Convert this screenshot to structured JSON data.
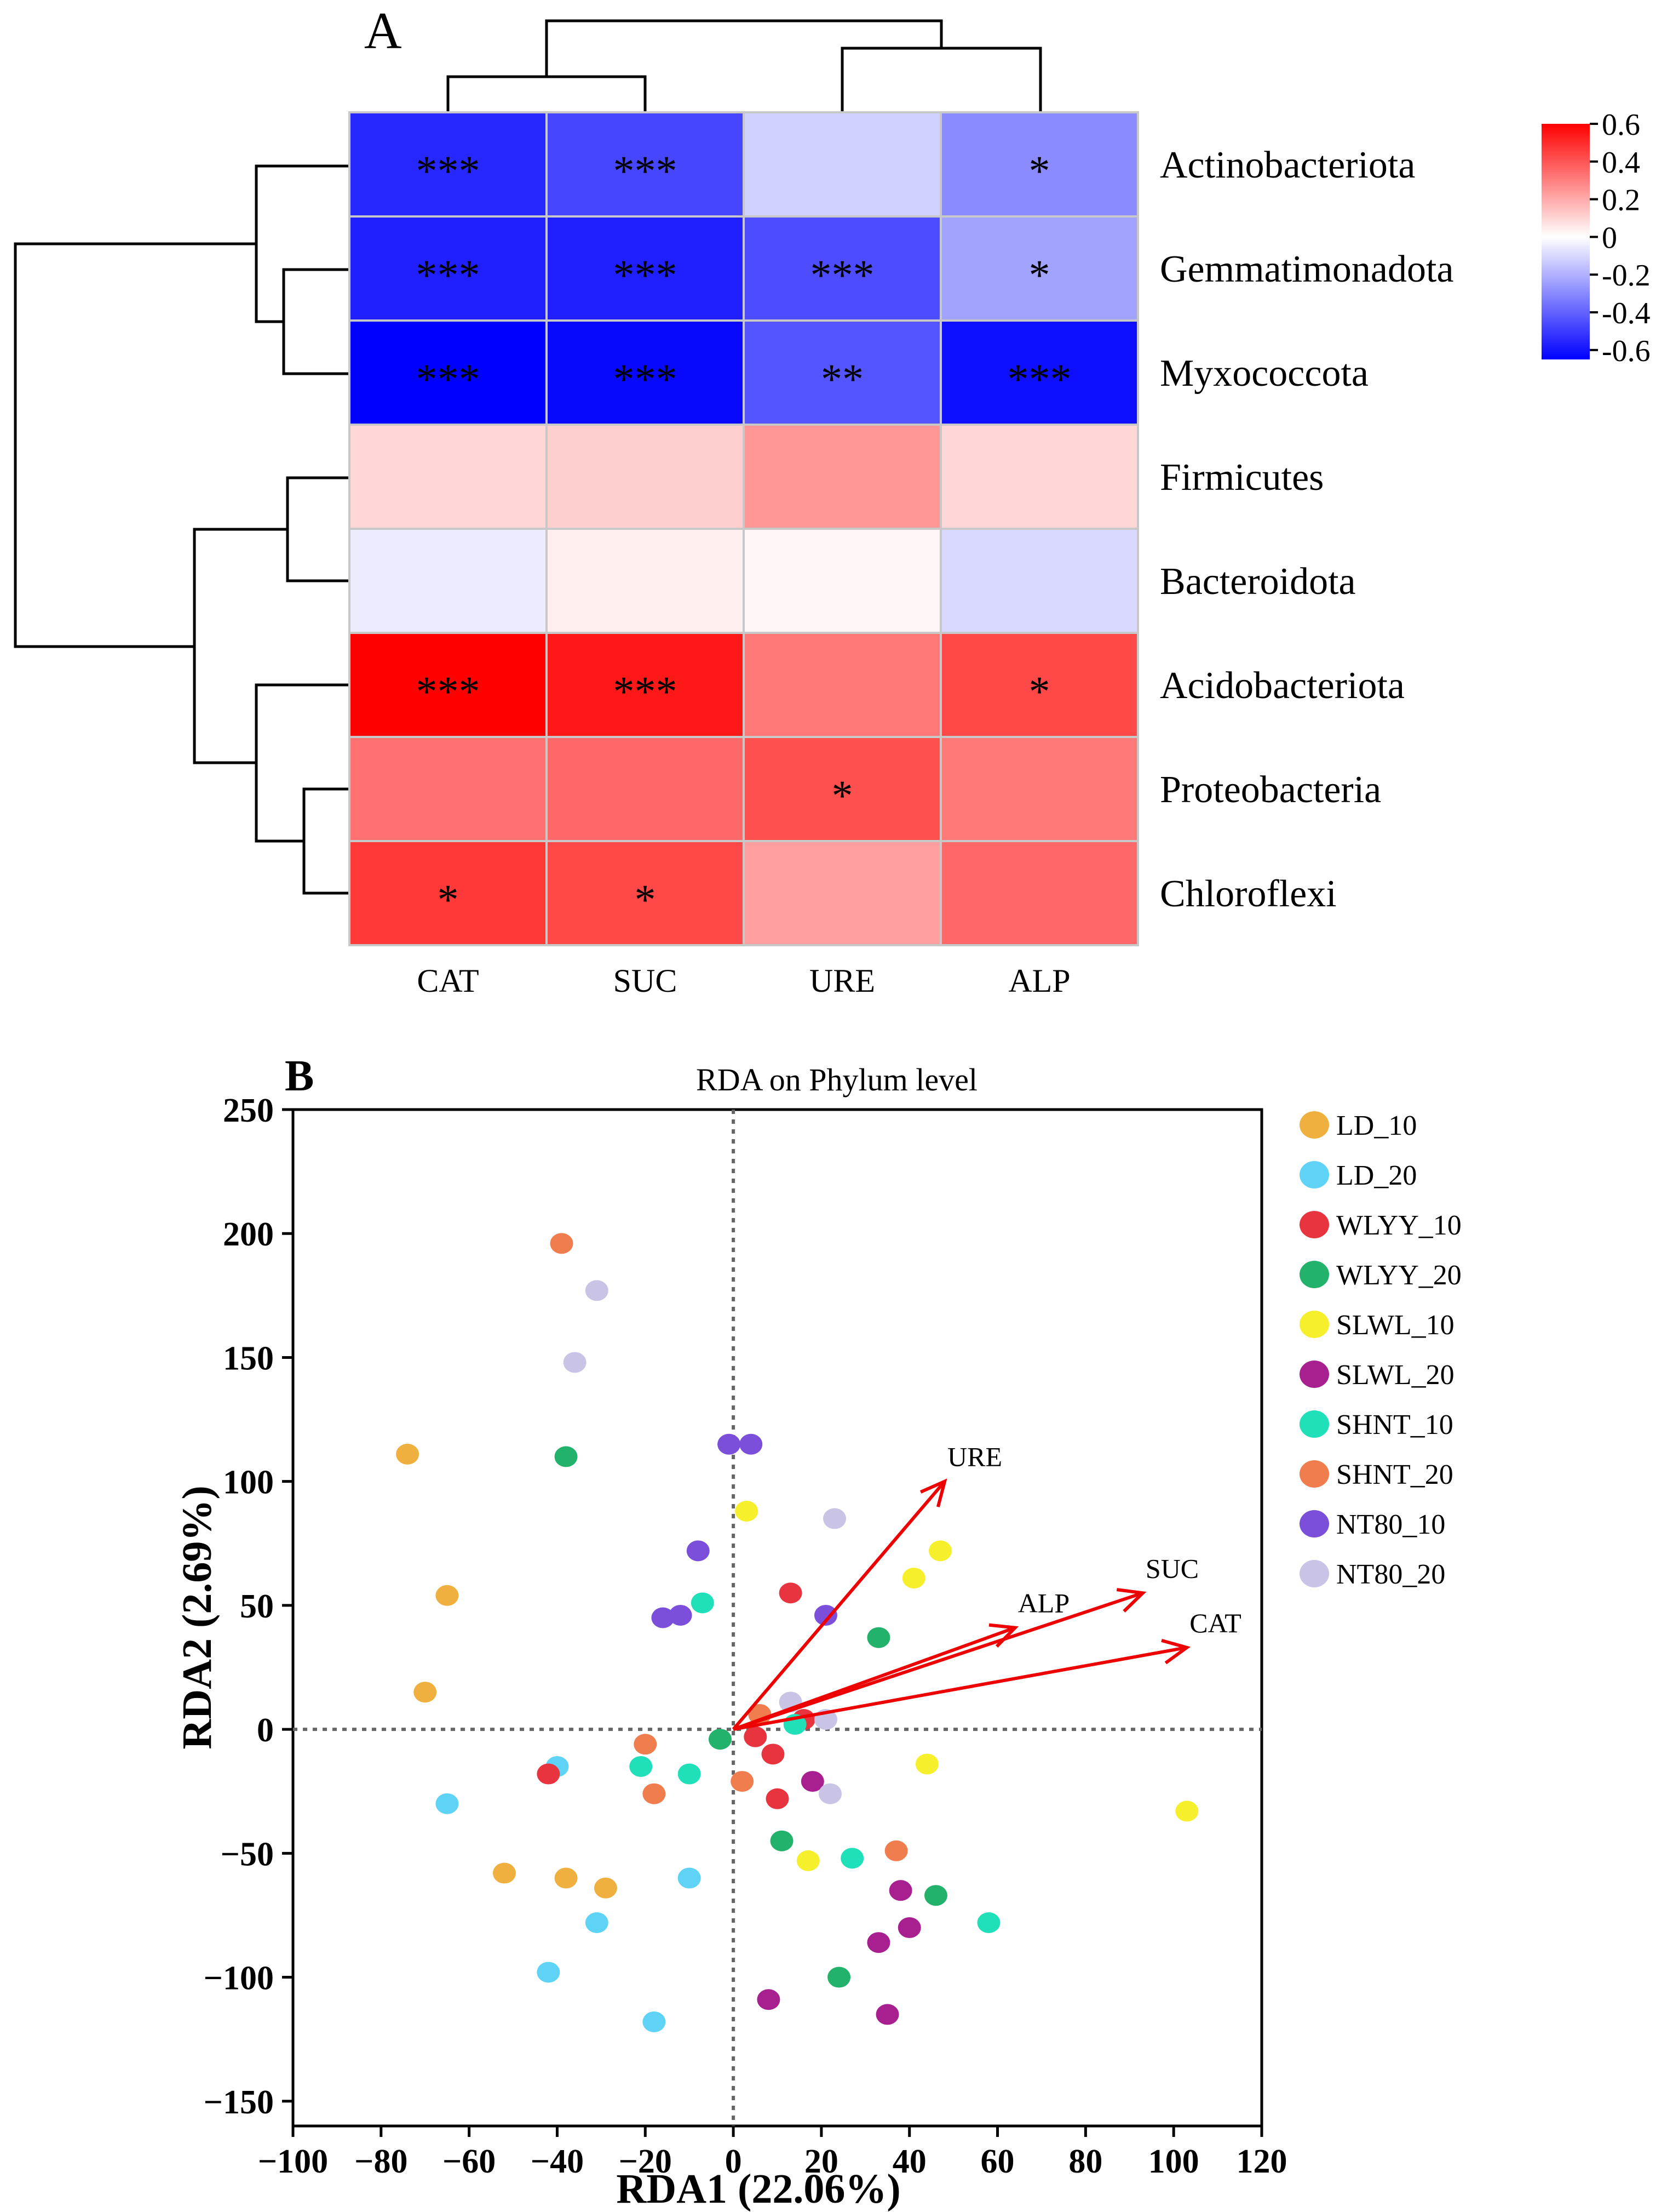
{
  "panel_a": {
    "label": "A",
    "columns": [
      "CAT",
      "SUC",
      "URE",
      "ALP"
    ],
    "rows": [
      "Actinobacteriota",
      "Gemmatimonadota",
      "Myxococcota",
      "Firmicutes",
      "Bacteroidota",
      "Acidobacteriota",
      "Proteobacteria",
      "Chloroflexi"
    ]
  },
  "chart_data": [
    {
      "type": "heatmap",
      "title": "",
      "xlabel": "",
      "ylabel": "",
      "columns": [
        "CAT",
        "SUC",
        "URE",
        "ALP"
      ],
      "rows": [
        "Actinobacteriota",
        "Gemmatimonadota",
        "Myxococcota",
        "Firmicutes",
        "Bacteroidota",
        "Acidobacteriota",
        "Proteobacteria",
        "Chloroflexi"
      ],
      "values": [
        [
          -0.56,
          -0.48,
          -0.12,
          -0.3
        ],
        [
          -0.58,
          -0.58,
          -0.46,
          -0.24
        ],
        [
          -0.66,
          -0.64,
          -0.44,
          -0.62
        ],
        [
          0.1,
          0.12,
          0.26,
          0.1
        ],
        [
          -0.05,
          0.04,
          0.02,
          -0.1
        ],
        [
          0.64,
          0.58,
          0.34,
          0.46
        ],
        [
          0.36,
          0.38,
          0.44,
          0.34
        ],
        [
          0.5,
          0.46,
          0.24,
          0.38
        ]
      ],
      "significance": [
        [
          "***",
          "***",
          "",
          "*"
        ],
        [
          "***",
          "***",
          "***",
          "*"
        ],
        [
          "***",
          "***",
          "**",
          "***"
        ],
        [
          "",
          "",
          "",
          ""
        ],
        [
          "",
          "",
          "",
          ""
        ],
        [
          "***",
          "***",
          "",
          "*"
        ],
        [
          "",
          "",
          "*",
          ""
        ],
        [
          "*",
          "*",
          "",
          ""
        ]
      ],
      "colorbar": {
        "range": [
          -0.65,
          0.6
        ],
        "ticks": [
          0.6,
          0.4,
          0.2,
          0,
          -0.2,
          -0.4,
          -0.6
        ],
        "tick_labels": [
          "0.6",
          "0.4",
          "0.2",
          "0",
          "-0.2",
          "-0.4",
          "-0.6"
        ],
        "colors": {
          "low": "#0000ff",
          "mid": "#ffffff",
          "high": "#ff0000"
        }
      },
      "row_dendrogram_groups": [
        [
          "Actinobacteriota",
          [
            "Gemmatimonadota",
            "Myxococcota"
          ]
        ],
        [
          [
            "Firmicutes",
            "Bacteroidota"
          ],
          [
            "Acidobacteriota",
            [
              "Proteobacteria",
              "Chloroflexi"
            ]
          ]
        ]
      ],
      "column_dendrogram_groups": [
        [
          "CAT",
          "SUC"
        ],
        [
          "URE",
          "ALP"
        ]
      ]
    },
    {
      "type": "scatter",
      "panel_label": "B",
      "title": "RDA on Phylum level",
      "xlabel": "RDA1 (22.06%)",
      "ylabel": "RDA2 (2.69%)",
      "xlim": [
        -100,
        120
      ],
      "ylim": [
        -160,
        250
      ],
      "xticks": [
        -100,
        -80,
        -60,
        -40,
        -20,
        0,
        20,
        40,
        60,
        80,
        100,
        120
      ],
      "yticks": [
        -150,
        -100,
        -50,
        0,
        50,
        100,
        150,
        200,
        250
      ],
      "series": [
        {
          "name": "LD_10",
          "color": "#f0b040",
          "points": [
            [
              -74,
              111
            ],
            [
              -65,
              54
            ],
            [
              -70,
              15
            ],
            [
              -52,
              -58
            ],
            [
              -38,
              -60
            ],
            [
              -29,
              -64
            ]
          ]
        },
        {
          "name": "LD_20",
          "color": "#5fd3f5",
          "points": [
            [
              -40,
              -15
            ],
            [
              -65,
              -30
            ],
            [
              -31,
              -78
            ],
            [
              -42,
              -98
            ],
            [
              -18,
              -118
            ],
            [
              -10,
              -60
            ]
          ]
        },
        {
          "name": "WLYY_10",
          "color": "#e8343f",
          "points": [
            [
              -42,
              -18
            ],
            [
              13,
              55
            ],
            [
              5,
              -3
            ],
            [
              9,
              -10
            ],
            [
              10,
              -28
            ],
            [
              16,
              4
            ]
          ]
        },
        {
          "name": "WLYY_20",
          "color": "#23b26b",
          "points": [
            [
              -38,
              110
            ],
            [
              -3,
              -4
            ],
            [
              11,
              -45
            ],
            [
              33,
              37
            ],
            [
              46,
              -67
            ],
            [
              24,
              -100
            ]
          ]
        },
        {
          "name": "SLWL_10",
          "color": "#f6f02c",
          "points": [
            [
              3,
              88
            ],
            [
              47,
              72
            ],
            [
              41,
              61
            ],
            [
              44,
              -14
            ],
            [
              17,
              -53
            ],
            [
              103,
              -33
            ]
          ]
        },
        {
          "name": "SLWL_20",
          "color": "#a8208f",
          "points": [
            [
              18,
              -21
            ],
            [
              38,
              -65
            ],
            [
              40,
              -80
            ],
            [
              33,
              -86
            ],
            [
              35,
              -115
            ],
            [
              8,
              -109
            ]
          ]
        },
        {
          "name": "SHNT_10",
          "color": "#1fe0b8",
          "points": [
            [
              -7,
              51
            ],
            [
              -10,
              -18
            ],
            [
              -21,
              -15
            ],
            [
              14,
              2
            ],
            [
              27,
              -52
            ],
            [
              58,
              -78
            ]
          ]
        },
        {
          "name": "SHNT_20",
          "color": "#ef7d4d",
          "points": [
            [
              -39,
              196
            ],
            [
              -20,
              -6
            ],
            [
              -18,
              -26
            ],
            [
              2,
              -21
            ],
            [
              6,
              6
            ],
            [
              37,
              -49
            ]
          ]
        },
        {
          "name": "NT80_10",
          "color": "#7b4fd9",
          "points": [
            [
              -1,
              115
            ],
            [
              4,
              115
            ],
            [
              -8,
              72
            ],
            [
              -16,
              45
            ],
            [
              -12,
              46
            ],
            [
              21,
              46
            ]
          ]
        },
        {
          "name": "NT80_20",
          "color": "#c9c3e6",
          "points": [
            [
              -31,
              177
            ],
            [
              -36,
              148
            ],
            [
              23,
              85
            ],
            [
              13,
              11
            ],
            [
              21,
              4
            ],
            [
              22,
              -26
            ]
          ]
        }
      ],
      "vectors": [
        {
          "name": "URE",
          "x": 48,
          "y": 100
        },
        {
          "name": "ALP",
          "x": 64,
          "y": 41
        },
        {
          "name": "SUC",
          "x": 93,
          "y": 55
        },
        {
          "name": "CAT",
          "x": 103,
          "y": 33
        }
      ],
      "vector_color": "#ee0000",
      "legend": {
        "position": "right",
        "entries": [
          "LD_10",
          "LD_20",
          "WLYY_10",
          "WLYY_20",
          "SLWL_10",
          "SLWL_20",
          "SHNT_10",
          "SHNT_20",
          "NT80_10",
          "NT80_20"
        ]
      },
      "reference_lines": {
        "x": 0,
        "y": 0,
        "style": "dotted"
      }
    }
  ]
}
